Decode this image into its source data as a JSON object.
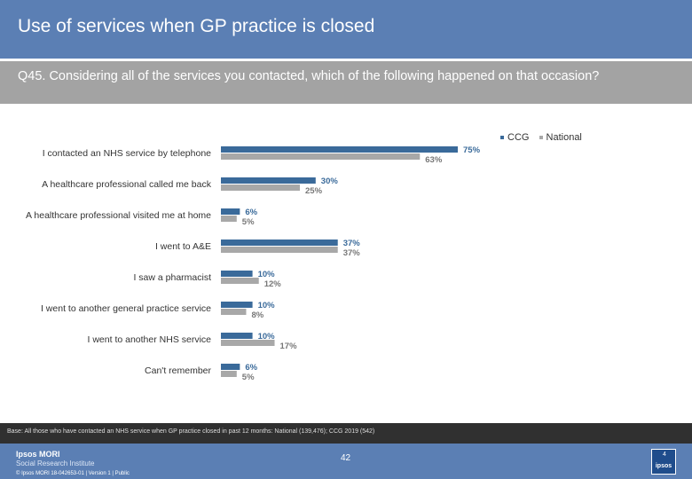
{
  "header": {
    "title": "Use of services when GP practice is closed"
  },
  "question": {
    "text": "Q45. Considering all of the services you contacted, which of the following happened on that occasion?"
  },
  "colors": {
    "ccg": "#3a6a9a",
    "national": "#a8a8a8",
    "header": "#5b7fb4",
    "question_band": "#a3a3a3"
  },
  "chart_data": {
    "type": "bar",
    "orientation": "horizontal",
    "categories": [
      "I contacted an NHS service by telephone",
      "A healthcare professional called me back",
      "A healthcare professional visited me at home",
      "I went to A&E",
      "I saw a pharmacist",
      "I went to another general practice service",
      "I went to another NHS service",
      "Can't remember"
    ],
    "series": [
      {
        "name": "CCG",
        "values": [
          75,
          30,
          6,
          37,
          10,
          10,
          10,
          6
        ],
        "labels": [
          "75%",
          "30%",
          "6%",
          "37%",
          "10%",
          "10%",
          "10%",
          "6%"
        ]
      },
      {
        "name": "National",
        "values": [
          63,
          25,
          5,
          37,
          12,
          8,
          17,
          5
        ],
        "labels": [
          "63%",
          "25%",
          "5%",
          "37%",
          "12%",
          "8%",
          "17%",
          "5%"
        ]
      }
    ],
    "xlim": [
      0,
      100
    ],
    "legend_position": "top-right",
    "unit": "%"
  },
  "footer": {
    "base_note": "Base: All those who have contacted an NHS service when GP practice closed in past 12 months: National (139,476); CCG 2019 (542)",
    "logo_line1": "Ipsos MORI",
    "logo_line2": "Social Research Institute",
    "copyright": "© Ipsos MORI     18-042653-01 | Version 1 | Public",
    "page_number": "42",
    "badge_text": "ipsos",
    "badge_number": "4"
  }
}
